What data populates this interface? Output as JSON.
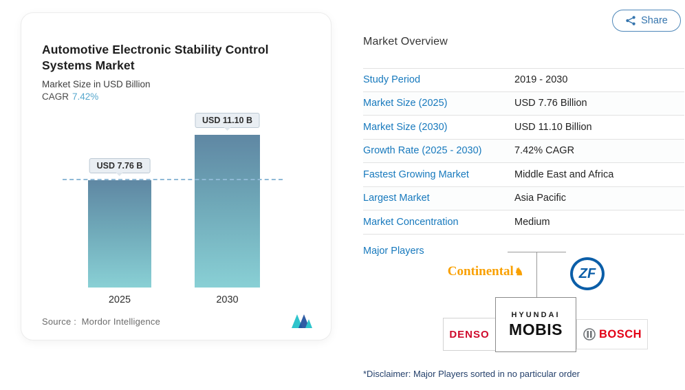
{
  "share": {
    "label": "Share"
  },
  "chart_card": {
    "title": "Automotive Electronic Stability Control Systems Market",
    "subtitle": "Market Size in USD Billion",
    "cagr_label": "CAGR",
    "cagr_value": "7.42%",
    "source_label": "Source :",
    "source_value": "Mordor Intelligence"
  },
  "chart_data": {
    "type": "bar",
    "title": "Automotive Electronic Stability Control Systems Market",
    "ylabel": "Market Size in USD Billion",
    "categories": [
      "2025",
      "2030"
    ],
    "values": [
      7.76,
      11.1
    ],
    "value_labels": [
      "USD 7.76 B",
      "USD 11.10 B"
    ],
    "ylim": [
      0,
      13
    ],
    "grid": false,
    "annotations": [
      "dashed reference line at 2025 market size level"
    ]
  },
  "overview": {
    "heading": "Market Overview",
    "rows": [
      {
        "label": "Study Period",
        "value": "2019 - 2030"
      },
      {
        "label": "Market Size (2025)",
        "value": "USD 7.76 Billion"
      },
      {
        "label": "Market Size (2030)",
        "value": "USD 11.10 Billion"
      },
      {
        "label": "Growth Rate (2025 - 2030)",
        "value": "7.42% CAGR"
      },
      {
        "label": "Fastest Growing Market",
        "value": "Middle East and Africa"
      },
      {
        "label": "Largest Market",
        "value": "Asia Pacific"
      },
      {
        "label": "Market Concentration",
        "value": "Medium"
      }
    ],
    "major_players_label": "Major Players",
    "players": {
      "continental": "Continental",
      "zf": "ZF",
      "denso": "DENSO",
      "mobis_top": "HYUNDAI",
      "mobis_bottom": "MOBIS",
      "bosch": "BOSCH"
    },
    "disclaimer": "*Disclaimer: Major Players sorted in no particular order"
  },
  "colors": {
    "accent_blue": "#1779bd",
    "cagr_blue": "#56a7cd",
    "bar_gradient_top": "#5f87a3",
    "bar_gradient_bottom": "#89d0d5",
    "dashed_line": "#8fb9d6",
    "continental_gold": "#f9a000",
    "zf_blue": "#0b5ea8",
    "denso_red": "#cf0a2c",
    "bosch_red": "#e30016"
  }
}
